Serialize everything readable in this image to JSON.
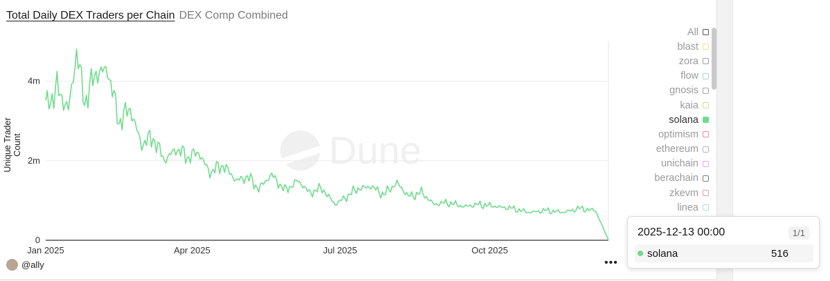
{
  "header": {
    "title": "Total Daily DEX Traders per Chain",
    "subtitle": "DEX Comp Combined"
  },
  "watermark": "Dune",
  "author": "@ally",
  "more_label": "•••",
  "legend": [
    {
      "label": "All",
      "color": "#555555",
      "active": false
    },
    {
      "label": "blast",
      "color": "#e8e08a",
      "active": false
    },
    {
      "label": "zora",
      "color": "#9aa0b8",
      "active": false
    },
    {
      "label": "flow",
      "color": "#a8d8c0",
      "active": false
    },
    {
      "label": "gnosis",
      "color": "#9ea8a0",
      "active": false
    },
    {
      "label": "kaia",
      "color": "#d8dc80",
      "active": false
    },
    {
      "label": "solana",
      "color": "#6fdc8c",
      "active": true
    },
    {
      "label": "optimism",
      "color": "#f08a8a",
      "active": false
    },
    {
      "label": "ethereum",
      "color": "#a8b4e8",
      "active": false
    },
    {
      "label": "unichain",
      "color": "#f0a8d8",
      "active": false
    },
    {
      "label": "berachain",
      "color": "#8a7a6a",
      "active": false
    },
    {
      "label": "zkevm",
      "color": "#e89ab8",
      "active": false
    },
    {
      "label": "linea",
      "color": "#b8d8f0",
      "active": false
    }
  ],
  "tooltip": {
    "date": "2025-12-13 00:00",
    "page": "1/1",
    "series": "solana",
    "value": "516",
    "color": "#6fdc8c"
  },
  "chart_data": {
    "type": "line",
    "title": "Total Daily DEX Traders per Chain",
    "ylabel": "Unique Trader Count",
    "xlabel": "",
    "y_ticks": [
      "0",
      "2m",
      "4m"
    ],
    "y_tick_values": [
      0,
      2000000,
      4000000
    ],
    "x_ticks": [
      "Jan 2025",
      "Apr 2025",
      "Jul 2025",
      "Oct 2025"
    ],
    "x_tick_dates": [
      "2025-01-01",
      "2025-04-01",
      "2025-07-01",
      "2025-10-01"
    ],
    "x_range": [
      "2025-01-01",
      "2025-12-13"
    ],
    "ylim": [
      0,
      5000000
    ],
    "grid": true,
    "legend_position": "right",
    "series": [
      {
        "name": "solana",
        "color": "#6fdc8c",
        "points": [
          [
            "2025-01-01",
            3400000
          ],
          [
            "2025-01-08",
            3800000
          ],
          [
            "2025-01-15",
            3300000
          ],
          [
            "2025-01-20",
            4700000
          ],
          [
            "2025-01-25",
            3500000
          ],
          [
            "2025-02-01",
            4200000
          ],
          [
            "2025-02-08",
            4300000
          ],
          [
            "2025-02-15",
            3000000
          ],
          [
            "2025-02-22",
            3300000
          ],
          [
            "2025-03-01",
            2400000
          ],
          [
            "2025-03-08",
            2600000
          ],
          [
            "2025-03-15",
            2000000
          ],
          [
            "2025-03-22",
            2300000
          ],
          [
            "2025-03-29",
            2100000
          ],
          [
            "2025-04-05",
            2200000
          ],
          [
            "2025-04-12",
            1700000
          ],
          [
            "2025-04-20",
            1900000
          ],
          [
            "2025-04-28",
            1500000
          ],
          [
            "2025-05-05",
            1600000
          ],
          [
            "2025-05-12",
            1300000
          ],
          [
            "2025-05-20",
            1650000
          ],
          [
            "2025-05-28",
            1250000
          ],
          [
            "2025-06-05",
            1500000
          ],
          [
            "2025-06-12",
            1200000
          ],
          [
            "2025-06-20",
            1300000
          ],
          [
            "2025-06-28",
            900000
          ],
          [
            "2025-07-05",
            1100000
          ],
          [
            "2025-07-12",
            1300000
          ],
          [
            "2025-07-20",
            1350000
          ],
          [
            "2025-07-28",
            1150000
          ],
          [
            "2025-08-05",
            1450000
          ],
          [
            "2025-08-12",
            1100000
          ],
          [
            "2025-08-20",
            1200000
          ],
          [
            "2025-08-28",
            900000
          ],
          [
            "2025-09-05",
            950000
          ],
          [
            "2025-09-15",
            850000
          ],
          [
            "2025-09-25",
            900000
          ],
          [
            "2025-10-05",
            850000
          ],
          [
            "2025-10-15",
            800000
          ],
          [
            "2025-10-25",
            700000
          ],
          [
            "2025-11-05",
            750000
          ],
          [
            "2025-11-15",
            700000
          ],
          [
            "2025-11-25",
            800000
          ],
          [
            "2025-12-05",
            750000
          ],
          [
            "2025-12-13",
            516
          ]
        ]
      }
    ]
  }
}
